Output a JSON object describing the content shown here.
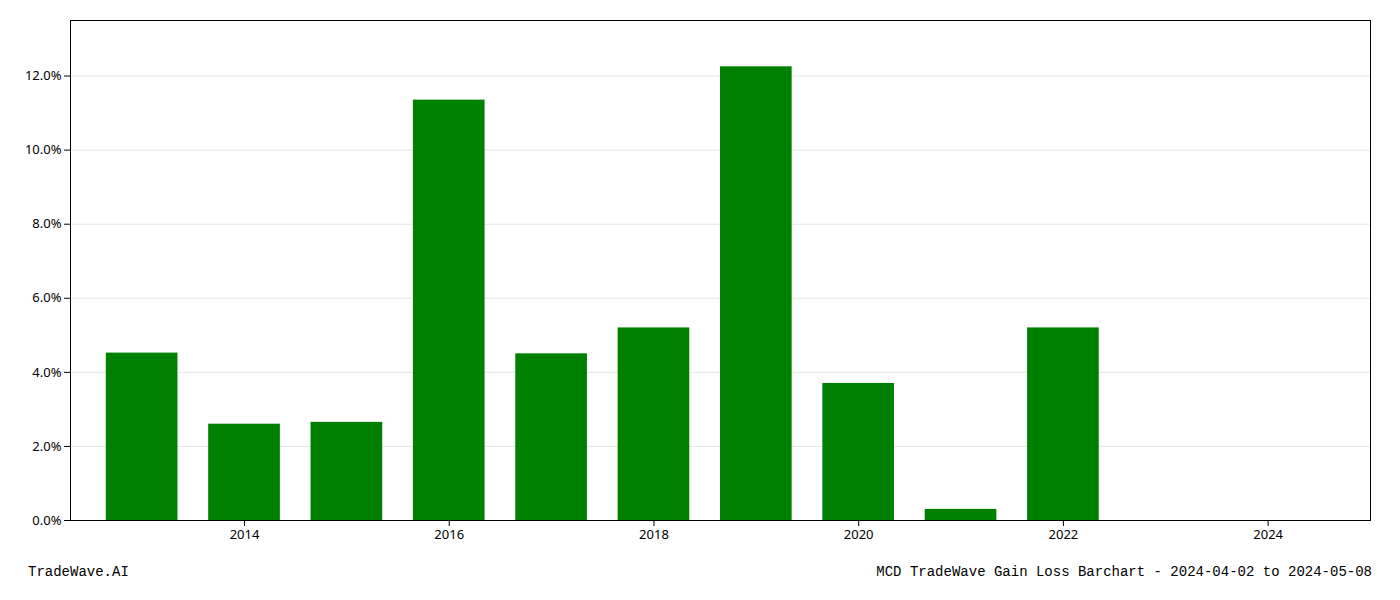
{
  "chart_data": {
    "type": "bar",
    "title": "MCD TradeWave Gain Loss Barchart - 2024-04-02 to 2024-05-08",
    "annotations": [
      "TradeWave.AI"
    ],
    "x": [
      2013,
      2014,
      2015,
      2016,
      2017,
      2018,
      2019,
      2020,
      2021,
      2022,
      2023
    ],
    "values": [
      0.0452,
      0.026,
      0.0265,
      0.1135,
      0.045,
      0.052,
      0.1225,
      0.037,
      0.003,
      0.052,
      0.0
    ],
    "color": "#008000",
    "xlim": [
      2012.3,
      2025.0
    ],
    "xticks": [
      2014,
      2016,
      2018,
      2020,
      2022,
      2024
    ],
    "ylim": [
      0,
      0.135
    ],
    "yticks": [
      {
        "value": 0.0,
        "label": "0.0%"
      },
      {
        "value": 0.02,
        "label": "2.0%"
      },
      {
        "value": 0.04,
        "label": "4.0%"
      },
      {
        "value": 0.06,
        "label": "6.0%"
      },
      {
        "value": 0.08,
        "label": "8.0%"
      },
      {
        "value": 0.1,
        "label": "10.0%"
      },
      {
        "value": 0.12,
        "label": "12.0%"
      }
    ],
    "grid": true
  }
}
